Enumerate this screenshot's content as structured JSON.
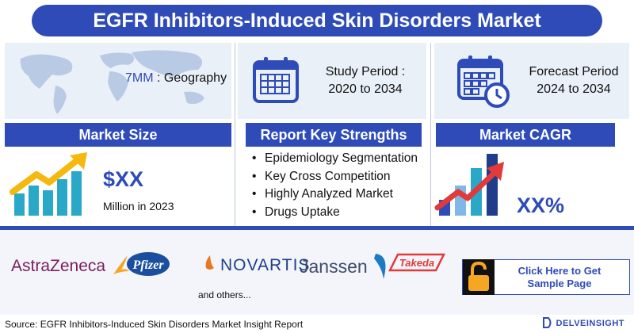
{
  "title": "EGFR Inhibitors-Induced Skin Disorders Market",
  "geography": {
    "prefix": "7MM",
    "label": " : Geography",
    "icon": "world-map-icon"
  },
  "study_period": {
    "label": "Study Period :",
    "value": "2020 to 2034",
    "icon": "calendar-icon"
  },
  "forecast_period": {
    "label": "Forecast Period",
    "value": "2024 to 2034",
    "icon": "calendar-clock-icon"
  },
  "market_size": {
    "header": "Market Size",
    "value": "$XX",
    "unit": "Million in 2023",
    "icon": "growth-bar-chart-icon"
  },
  "key_strengths": {
    "header": "Report Key Strengths",
    "items": [
      "Epidemiology Segmentation",
      "Key Cross Competition",
      "Highly Analyzed Market",
      "Drugs Uptake"
    ]
  },
  "market_cagr": {
    "header": "Market CAGR",
    "value": "XX%",
    "icon": "cagr-chart-icon"
  },
  "companies": {
    "logos": [
      "AstraZeneca",
      "Pfizer",
      "NOVARTIS",
      "Janssen",
      "Takeda"
    ],
    "others": "and others..."
  },
  "sample_button": {
    "label": "Click Here to Get Sample Page",
    "icon": "lock-icon"
  },
  "source": "Source: EGFR Inhibitors-Induced Skin Disorders Market Insight Report",
  "brand": "DELVEINSIGHT",
  "colors": {
    "primary": "#2e4bb8",
    "card_bg": "#eaf0f8",
    "accent_yellow": "#f5b80d",
    "accent_teal": "#29a8c8",
    "accent_red": "#e03a3a"
  }
}
